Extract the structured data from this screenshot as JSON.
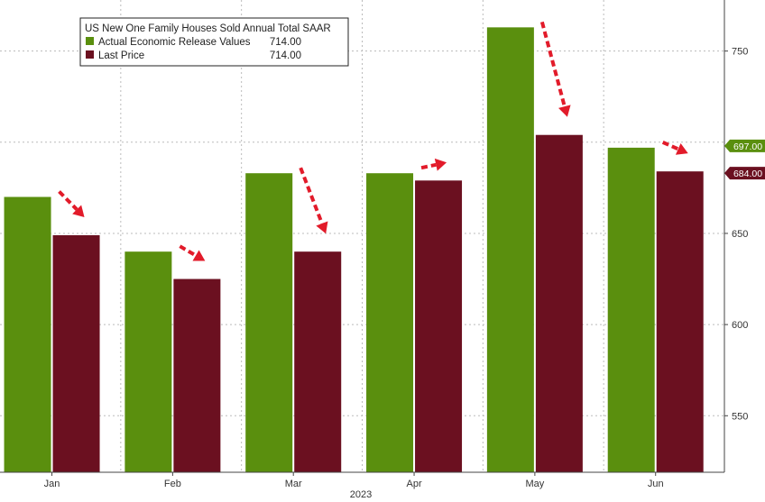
{
  "chart_data": {
    "type": "bar",
    "title": "US New One Family Houses Sold Annual Total SAAR",
    "xlabel": "2023",
    "ylabel": "",
    "categories": [
      "Jan",
      "Feb",
      "Mar",
      "Apr",
      "May",
      "Jun"
    ],
    "series": [
      {
        "name": "Actual Economic Release Values",
        "legend_value": "714.00",
        "color": "#5a8f0e",
        "values": [
          670,
          640,
          683,
          683,
          763,
          697
        ]
      },
      {
        "name": "Last Price",
        "legend_value": "714.00",
        "color": "#6b1020",
        "values": [
          649,
          625,
          640,
          679,
          704,
          684
        ]
      }
    ],
    "ylim": [
      519,
      778
    ],
    "yticks": [
      550,
      600,
      650,
      750
    ],
    "grid": true,
    "legend_position": "top-left",
    "last_value_badges": [
      {
        "label": "697.00",
        "value": 697,
        "color": "#5a8f0e"
      },
      {
        "label": "684.00",
        "value": 684,
        "color": "#6b1020"
      }
    ],
    "annotations": {
      "type": "red dashed downward arrows",
      "color": "#e21b2a"
    }
  }
}
